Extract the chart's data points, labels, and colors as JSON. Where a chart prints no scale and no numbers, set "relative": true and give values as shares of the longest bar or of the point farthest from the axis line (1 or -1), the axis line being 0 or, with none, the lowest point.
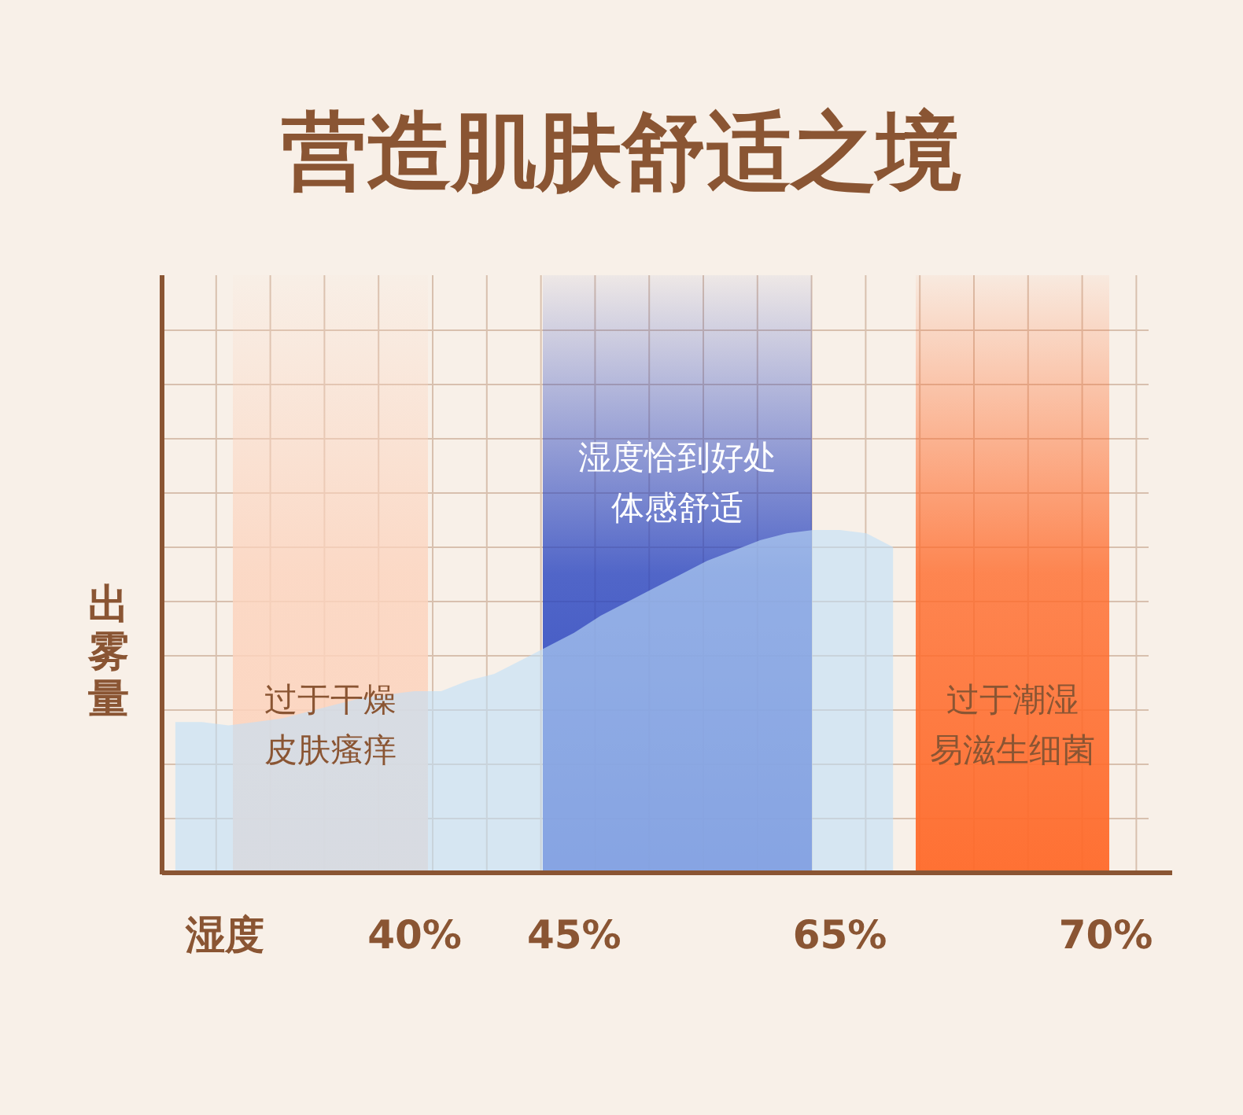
{
  "chart_data": {
    "type": "area",
    "title": "营造肌肤舒适之境",
    "xlabel": "湿度",
    "ylabel": "出雾量",
    "relative": true,
    "grid": true,
    "color": "#bfe0f8",
    "categories": [
      null,
      null,
      null,
      null,
      null,
      null,
      null,
      null,
      null,
      "40%",
      null,
      null,
      null,
      null,
      null,
      "45%",
      null,
      null,
      null,
      null,
      null,
      null,
      null,
      null,
      null,
      "65%",
      null,
      null,
      null,
      null,
      null,
      null,
      null,
      null,
      null,
      "70%",
      null,
      null
    ],
    "values": [
      0.44,
      0.44,
      0.43,
      0.44,
      0.45,
      0.47,
      0.49,
      0.51,
      0.52,
      0.53,
      0.53,
      0.56,
      0.58,
      0.62,
      0.66,
      0.7,
      0.75,
      0.79,
      0.83,
      0.87,
      0.91,
      0.94,
      0.97,
      0.99,
      1,
      1,
      0.99,
      0.95,
      null,
      null,
      null,
      null,
      null,
      null,
      null,
      null,
      null,
      null
    ],
    "annotations": [
      "过于干燥皮肤瘙痒",
      "湿度恰到好处体感舒适",
      "过于潮湿易滋生细菌"
    ]
  }
}
